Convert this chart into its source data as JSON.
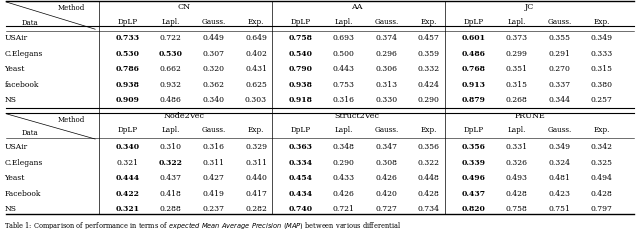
{
  "title_caption": "Table 1: Comparison of performance in terms of expected Mean Average Precision (MAP) between various differential",
  "top_section": {
    "methods": [
      "CN",
      "AA",
      "JC"
    ],
    "sub_cols": [
      "DpLP",
      "Lapl.",
      "Gauss.",
      "Exp."
    ],
    "datasets": [
      "USAir",
      "C.Elegans",
      "Yeast",
      "facebook",
      "NS"
    ],
    "data": {
      "CN": {
        "USAir": [
          "0.733",
          "0.722",
          "0.449",
          "0.649"
        ],
        "C.Elegans": [
          "0.530",
          "0.530",
          "0.307",
          "0.402"
        ],
        "Yeast": [
          "0.786",
          "0.662",
          "0.320",
          "0.431"
        ],
        "facebook": [
          "0.938",
          "0.932",
          "0.362",
          "0.625"
        ],
        "NS": [
          "0.909",
          "0.486",
          "0.340",
          "0.303"
        ]
      },
      "AA": {
        "USAir": [
          "0.758",
          "0.693",
          "0.374",
          "0.457"
        ],
        "C.Elegans": [
          "0.540",
          "0.500",
          "0.296",
          "0.359"
        ],
        "Yeast": [
          "0.790",
          "0.443",
          "0.306",
          "0.332"
        ],
        "facebook": [
          "0.938",
          "0.753",
          "0.313",
          "0.424"
        ],
        "NS": [
          "0.918",
          "0.316",
          "0.330",
          "0.290"
        ]
      },
      "JC": {
        "USAir": [
          "0.601",
          "0.373",
          "0.355",
          "0.349"
        ],
        "C.Elegans": [
          "0.486",
          "0.299",
          "0.291",
          "0.333"
        ],
        "Yeast": [
          "0.768",
          "0.351",
          "0.270",
          "0.315"
        ],
        "facebook": [
          "0.913",
          "0.315",
          "0.337",
          "0.380"
        ],
        "NS": [
          "0.879",
          "0.268",
          "0.344",
          "0.257"
        ]
      }
    },
    "bold": {
      "CN": {
        "USAir": [
          true,
          false,
          false,
          false
        ],
        "C.Elegans": [
          true,
          true,
          false,
          false
        ],
        "Yeast": [
          true,
          false,
          false,
          false
        ],
        "facebook": [
          true,
          false,
          false,
          false
        ],
        "NS": [
          true,
          false,
          false,
          false
        ]
      },
      "AA": {
        "USAir": [
          true,
          false,
          false,
          false
        ],
        "C.Elegans": [
          true,
          false,
          false,
          false
        ],
        "Yeast": [
          true,
          false,
          false,
          false
        ],
        "facebook": [
          true,
          false,
          false,
          false
        ],
        "NS": [
          true,
          false,
          false,
          false
        ]
      },
      "JC": {
        "USAir": [
          true,
          false,
          false,
          false
        ],
        "C.Elegans": [
          true,
          false,
          false,
          false
        ],
        "Yeast": [
          true,
          false,
          false,
          false
        ],
        "facebook": [
          true,
          false,
          false,
          false
        ],
        "NS": [
          true,
          false,
          false,
          false
        ]
      }
    }
  },
  "bottom_section": {
    "methods": [
      "Node2Vec",
      "Struct2Vec",
      "PRUNE"
    ],
    "sub_cols": [
      "DpLP",
      "Lapl.",
      "Gauss.",
      "Exp."
    ],
    "datasets": [
      "USAir",
      "C.Elegans",
      "Yeast",
      "Facebook",
      "NS"
    ],
    "data": {
      "Node2Vec": {
        "USAir": [
          "0.340",
          "0.310",
          "0.316",
          "0.329"
        ],
        "C.Elegans": [
          "0.321",
          "0.322",
          "0.311",
          "0.311"
        ],
        "Yeast": [
          "0.444",
          "0.437",
          "0.427",
          "0.440"
        ],
        "Facebook": [
          "0.422",
          "0.418",
          "0.419",
          "0.417"
        ],
        "NS": [
          "0.321",
          "0.288",
          "0.237",
          "0.282"
        ]
      },
      "Struct2Vec": {
        "USAir": [
          "0.363",
          "0.348",
          "0.347",
          "0.356"
        ],
        "C.Elegans": [
          "0.334",
          "0.290",
          "0.308",
          "0.322"
        ],
        "Yeast": [
          "0.454",
          "0.433",
          "0.426",
          "0.448"
        ],
        "Facebook": [
          "0.434",
          "0.426",
          "0.420",
          "0.428"
        ],
        "NS": [
          "0.740",
          "0.721",
          "0.727",
          "0.734"
        ]
      },
      "PRUNE": {
        "USAir": [
          "0.356",
          "0.331",
          "0.349",
          "0.342"
        ],
        "C.Elegans": [
          "0.339",
          "0.326",
          "0.324",
          "0.325"
        ],
        "Yeast": [
          "0.496",
          "0.493",
          "0.481",
          "0.494"
        ],
        "Facebook": [
          "0.437",
          "0.428",
          "0.423",
          "0.428"
        ],
        "NS": [
          "0.820",
          "0.758",
          "0.751",
          "0.797"
        ]
      }
    },
    "bold": {
      "Node2Vec": {
        "USAir": [
          true,
          false,
          false,
          false
        ],
        "C.Elegans": [
          false,
          true,
          false,
          false
        ],
        "Yeast": [
          true,
          false,
          false,
          false
        ],
        "Facebook": [
          true,
          false,
          false,
          false
        ],
        "NS": [
          true,
          false,
          false,
          false
        ]
      },
      "Struct2Vec": {
        "USAir": [
          true,
          false,
          false,
          false
        ],
        "C.Elegans": [
          true,
          false,
          false,
          false
        ],
        "Yeast": [
          true,
          false,
          false,
          false
        ],
        "Facebook": [
          true,
          false,
          false,
          false
        ],
        "NS": [
          true,
          false,
          false,
          false
        ]
      },
      "PRUNE": {
        "USAir": [
          true,
          false,
          false,
          false
        ],
        "C.Elegans": [
          true,
          false,
          false,
          false
        ],
        "Yeast": [
          true,
          false,
          false,
          false
        ],
        "Facebook": [
          true,
          false,
          false,
          false
        ],
        "NS": [
          true,
          false,
          false,
          false
        ]
      }
    }
  }
}
